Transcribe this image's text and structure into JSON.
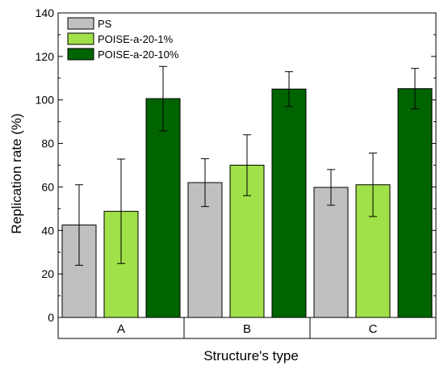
{
  "chart_data": {
    "type": "bar",
    "xlabel": "Structure's type",
    "ylabel": "Replication rate (%)",
    "ylim": [
      0,
      140
    ],
    "yticks": [
      0,
      20,
      40,
      60,
      80,
      100,
      120,
      140
    ],
    "grid": false,
    "legend_position": "top-left",
    "categories": [
      "A",
      "B",
      "C"
    ],
    "series": [
      {
        "name": "PS",
        "color": "#c0c0c0",
        "values": [
          42.5,
          62,
          59.8
        ],
        "errors": [
          18.5,
          11,
          8.2
        ]
      },
      {
        "name": "POISE-a-20-1%",
        "color": "#a0e048",
        "values": [
          48.8,
          70,
          61
        ],
        "errors": [
          24,
          14,
          14.6
        ]
      },
      {
        "name": "POISE-a-20-10%",
        "color": "#006400",
        "values": [
          100.6,
          105,
          105.2
        ],
        "errors": [
          14.8,
          8,
          9.3
        ]
      }
    ]
  }
}
